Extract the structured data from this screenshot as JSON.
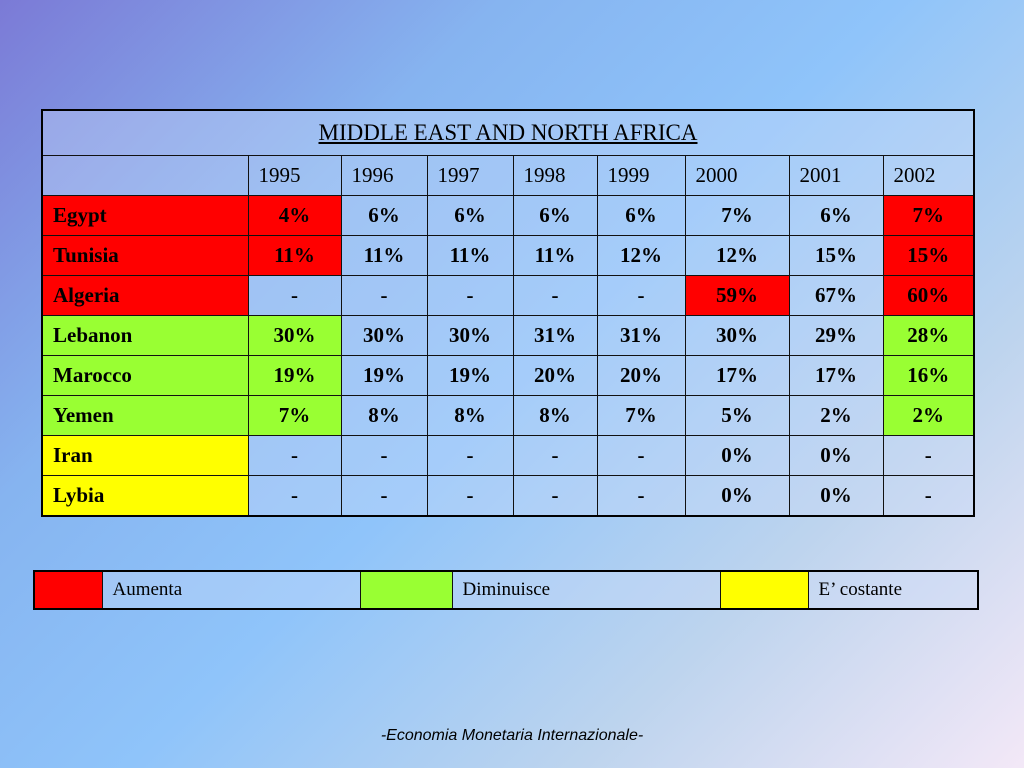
{
  "table": {
    "title": "MIDDLE EAST AND NORTH AFRICA",
    "years": [
      "1995",
      "1996",
      "1997",
      "1998",
      "1999",
      "2000",
      "2001",
      "2002"
    ],
    "rows": [
      {
        "country": "Egypt",
        "values": [
          "4%",
          "6%",
          "6%",
          "6%",
          "6%",
          "7%",
          "6%",
          "7%"
        ],
        "status_color": "#ff0000"
      },
      {
        "country": "Tunisia",
        "values": [
          "11%",
          "11%",
          "11%",
          "11%",
          "12%",
          "12%",
          "15%",
          "15%"
        ],
        "status_color": "#ff0000"
      },
      {
        "country": "Algeria",
        "values": [
          "-",
          "-",
          "-",
          "-",
          "-",
          "59%",
          "67%",
          "60%"
        ],
        "status_color": "#ff0000"
      },
      {
        "country": "Lebanon",
        "values": [
          "30%",
          "30%",
          "30%",
          "31%",
          "31%",
          "30%",
          "29%",
          "28%"
        ],
        "status_color": "#99ff33"
      },
      {
        "country": "Marocco",
        "values": [
          "19%",
          "19%",
          "19%",
          "20%",
          "20%",
          "17%",
          "17%",
          "16%"
        ],
        "status_color": "#99ff33"
      },
      {
        "country": "Yemen",
        "values": [
          "7%",
          "8%",
          "8%",
          "8%",
          "7%",
          "5%",
          "2%",
          "2%"
        ],
        "status_color": "#99ff33"
      },
      {
        "country": "Iran",
        "values": [
          "-",
          "-",
          "-",
          "-",
          "-",
          "0%",
          "0%",
          "-"
        ],
        "status_color": "#ffff00"
      },
      {
        "country": "Lybia",
        "values": [
          "-",
          "-",
          "-",
          "-",
          "-",
          "0%",
          "0%",
          "-"
        ],
        "status_color": "#ffff00"
      }
    ]
  },
  "legend": [
    {
      "color": "#ff0000",
      "label": "Aumenta"
    },
    {
      "color": "#99ff33",
      "label": "Diminuisce"
    },
    {
      "color": "#ffff00",
      "label": "E’ costante"
    }
  ],
  "footer": "-Economia Monetaria Internazionale-"
}
